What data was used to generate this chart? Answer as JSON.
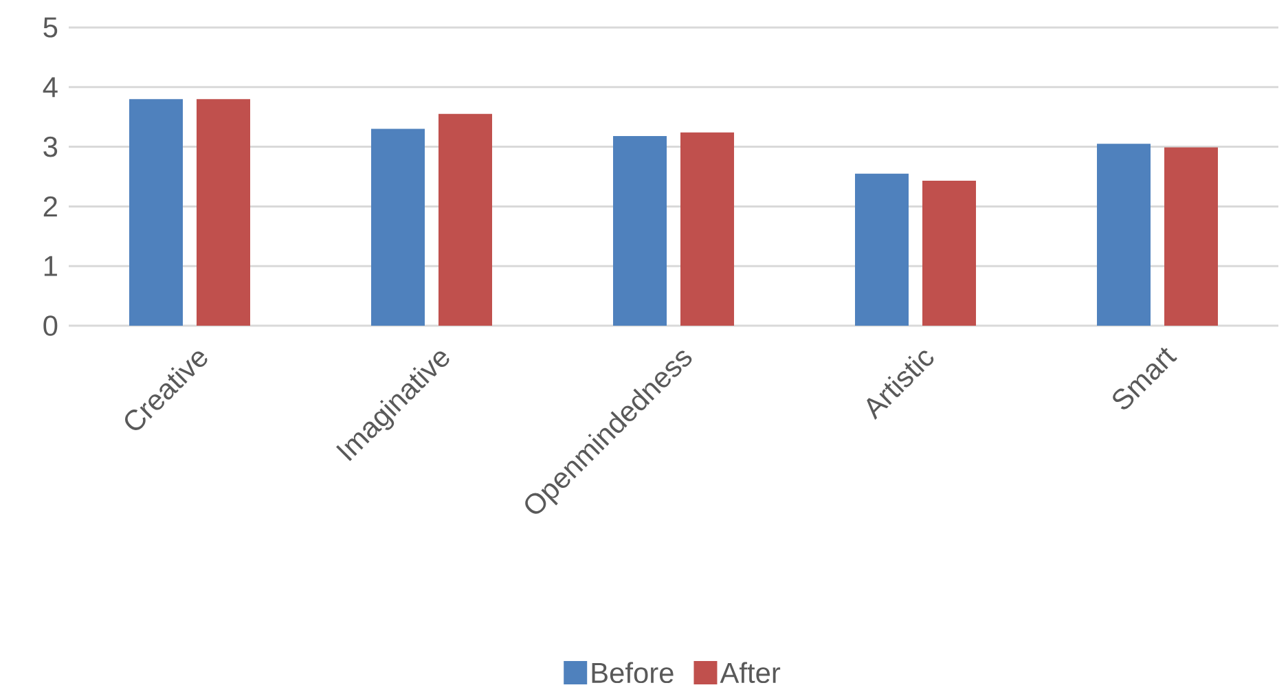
{
  "chart_data": {
    "type": "bar",
    "categories": [
      "Creative",
      "Imaginative",
      "Openmindedness",
      "Artistic",
      "Smart"
    ],
    "series": [
      {
        "name": "Before",
        "color": "#4f81bd",
        "values": [
          3.8,
          3.3,
          3.18,
          2.55,
          3.05
        ]
      },
      {
        "name": "After",
        "color": "#c0504d",
        "values": [
          3.8,
          3.55,
          3.24,
          2.43,
          2.99
        ]
      }
    ],
    "ylim": [
      0,
      5
    ],
    "yticks": [
      0,
      1,
      2,
      3,
      4,
      5
    ],
    "grid": "y",
    "legend": "bottom"
  }
}
